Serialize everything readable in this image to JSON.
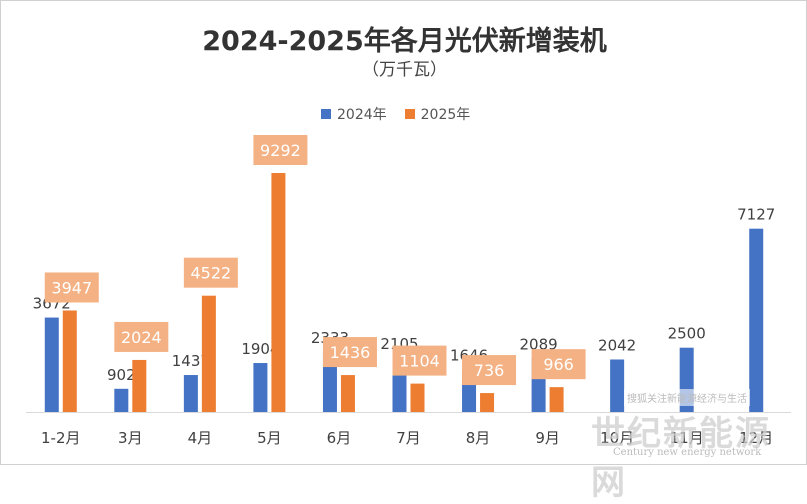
{
  "chart_data": {
    "type": "bar",
    "title": "2024-2025年各月光伏新增装机",
    "subtitle": "（万千瓦）",
    "categories": [
      "1-2月",
      "3月",
      "4月",
      "5月",
      "6月",
      "7月",
      "8月",
      "9月",
      "10月",
      "11月",
      "12月"
    ],
    "series": [
      {
        "name": "2024年",
        "color": "#4472C4",
        "values": [
          3672,
          902,
          1437,
          1904,
          2333,
          2105,
          1646,
          2089,
          2042,
          2500,
          7127
        ]
      },
      {
        "name": "2025年",
        "color": "#ED7D31",
        "values": [
          3947,
          2024,
          4522,
          9292,
          1436,
          1104,
          736,
          966,
          null,
          null,
          null
        ]
      }
    ],
    "ylim": [
      0,
      9300
    ],
    "grid": false,
    "legend": "top"
  },
  "watermark": {
    "note": "搜狐关注新能源经济与生活",
    "text": "世纪新能源网",
    "text_en": "Century new energy network"
  }
}
